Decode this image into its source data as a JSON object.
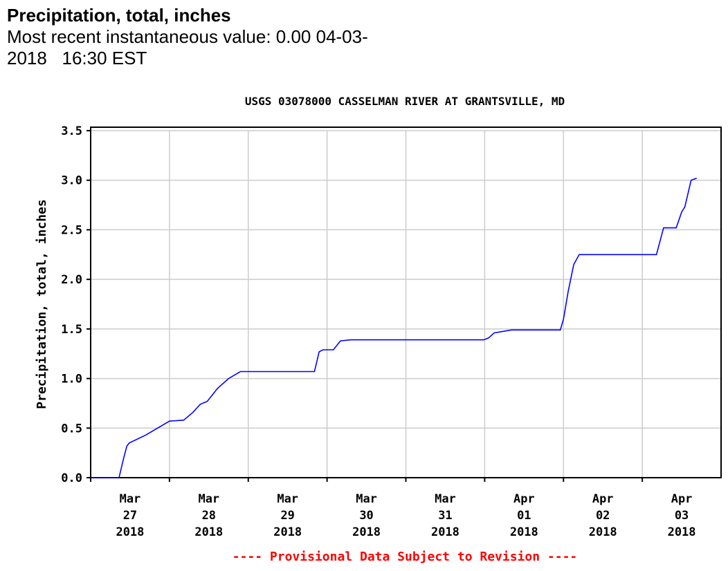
{
  "header": {
    "title": "Precipitation, total, inches",
    "recent": "Most recent instantaneous value: 0.00 04-03-\n2018   16:30 EST"
  },
  "chart_data": {
    "type": "line",
    "title": "USGS 03078000 CASSELMAN RIVER AT GRANTSVILLE, MD",
    "ylabel": "Precipitation, total, inches",
    "xlabel": "",
    "ylim": [
      0,
      3.5
    ],
    "yticks": [
      "0.0",
      "0.5",
      "1.0",
      "1.5",
      "2.0",
      "2.5",
      "3.0",
      "3.5"
    ],
    "xlim_days": [
      0,
      8
    ],
    "xticks": [
      [
        "Mar",
        "27",
        "2018"
      ],
      [
        "Mar",
        "28",
        "2018"
      ],
      [
        "Mar",
        "29",
        "2018"
      ],
      [
        "Mar",
        "30",
        "2018"
      ],
      [
        "Mar",
        "31",
        "2018"
      ],
      [
        "Apr",
        "01",
        "2018"
      ],
      [
        "Apr",
        "02",
        "2018"
      ],
      [
        "Apr",
        "03",
        "2018"
      ]
    ],
    "grid": true,
    "footer": "---- Provisional Data Subject to Revision ----",
    "series": [
      {
        "name": "Precipitation total",
        "color": "#0000ff",
        "x_days_from_mar27": [
          0,
          0.36,
          0.42,
          0.46,
          0.49,
          0.7,
          1.0,
          1.18,
          1.3,
          1.39,
          1.48,
          1.61,
          1.75,
          1.9,
          2.84,
          2.9,
          2.95,
          3.08,
          3.17,
          3.3,
          4.99,
          5.05,
          5.12,
          5.34,
          5.96,
          6.0,
          6.06,
          6.13,
          6.2,
          7.18,
          7.27,
          7.43,
          7.5,
          7.54,
          7.62,
          7.69
        ],
        "y": [
          0,
          0,
          0.2,
          0.32,
          0.35,
          0.43,
          0.57,
          0.58,
          0.66,
          0.74,
          0.77,
          0.9,
          1.0,
          1.07,
          1.07,
          1.27,
          1.29,
          1.29,
          1.38,
          1.39,
          1.39,
          1.41,
          1.46,
          1.49,
          1.49,
          1.6,
          1.88,
          2.15,
          2.25,
          2.25,
          2.52,
          2.52,
          2.68,
          2.73,
          3.0,
          3.02
        ]
      }
    ]
  }
}
